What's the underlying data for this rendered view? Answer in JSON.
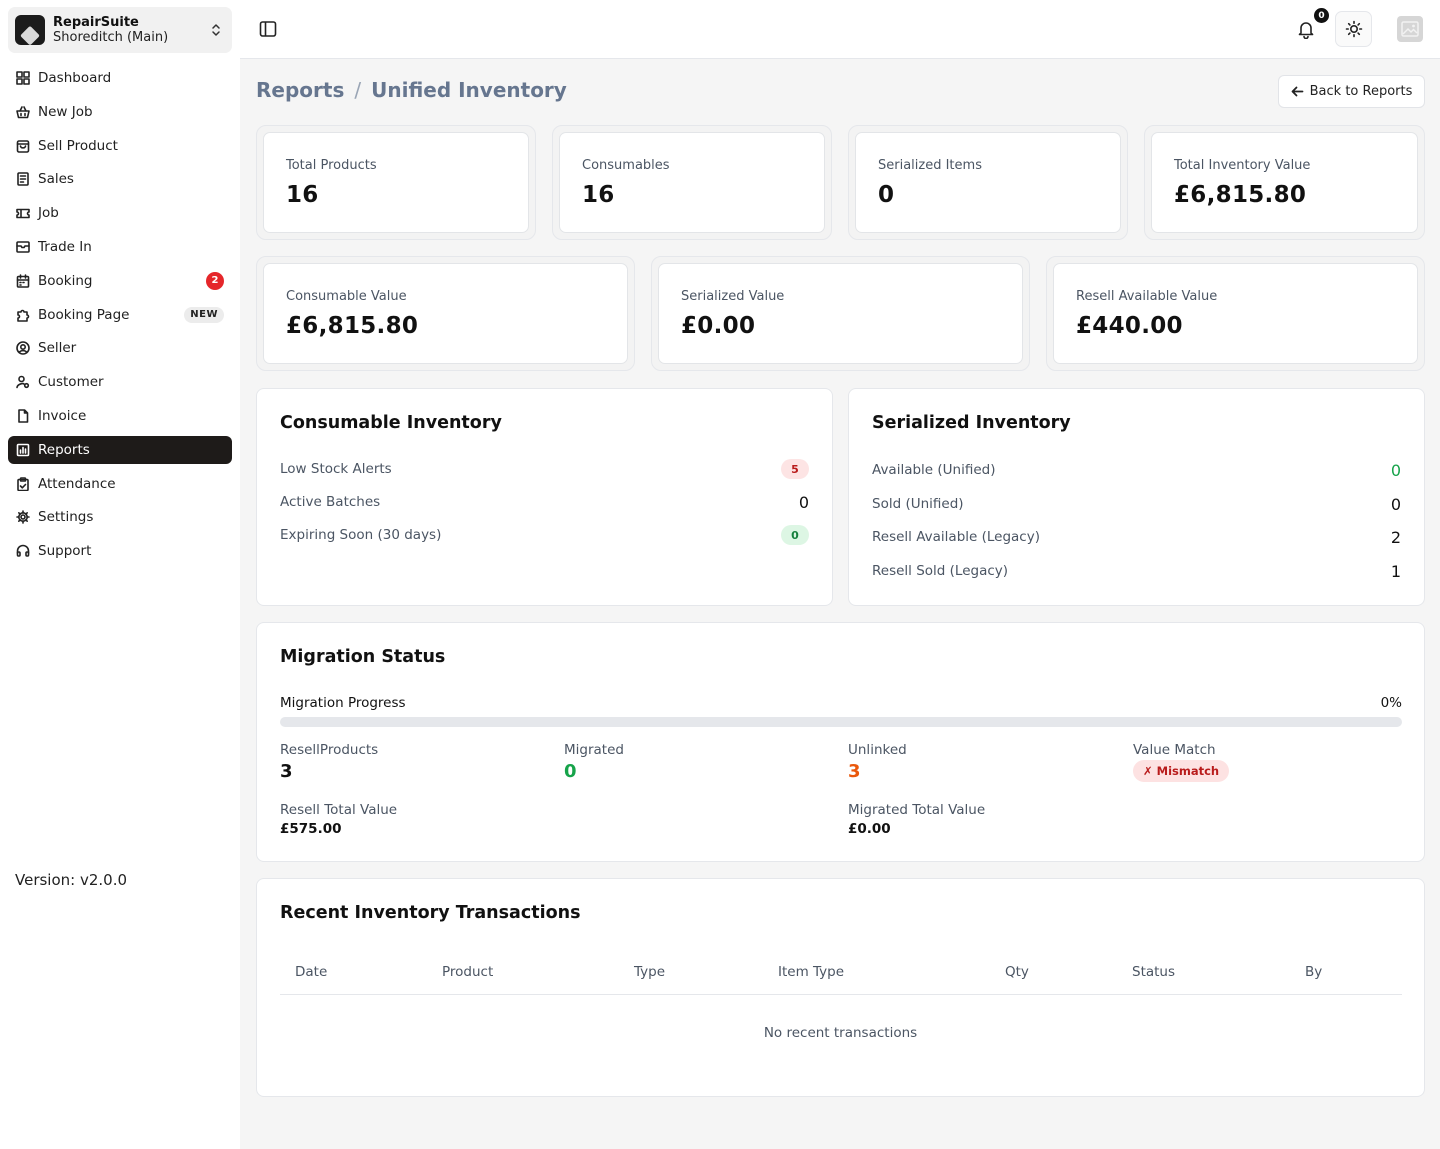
{
  "org": {
    "name": "RepairSuite",
    "branch": "Shoreditch (Main)"
  },
  "sidebar": {
    "items": [
      {
        "label": "Dashboard",
        "icon": "grid-icon"
      },
      {
        "label": "New Job",
        "icon": "basket-icon"
      },
      {
        "label": "Sell Product",
        "icon": "shopping-bag-icon"
      },
      {
        "label": "Sales",
        "icon": "receipt-icon"
      },
      {
        "label": "Job",
        "icon": "ticket-icon"
      },
      {
        "label": "Trade In",
        "icon": "archive-icon"
      },
      {
        "label": "Booking",
        "icon": "calendar-icon",
        "badge": "2"
      },
      {
        "label": "Booking Page",
        "icon": "puzzle-icon",
        "tag": "NEW"
      },
      {
        "label": "Seller",
        "icon": "user-circle-icon"
      },
      {
        "label": "Customer",
        "icon": "user-cog-icon"
      },
      {
        "label": "Invoice",
        "icon": "file-icon"
      },
      {
        "label": "Reports",
        "icon": "chart-icon",
        "active": true
      },
      {
        "label": "Attendance",
        "icon": "clipboard-icon"
      },
      {
        "label": "Settings",
        "icon": "gear-icon"
      },
      {
        "label": "Support",
        "icon": "headset-icon"
      }
    ],
    "version": "Version: v2.0.0"
  },
  "header": {
    "notification_count": "0"
  },
  "breadcrumb": {
    "parent": "Reports",
    "separator": "/",
    "current": "Unified Inventory"
  },
  "back_button": "Back to Reports",
  "stats_top": [
    {
      "label": "Total Products",
      "value": "16"
    },
    {
      "label": "Consumables",
      "value": "16"
    },
    {
      "label": "Serialized Items",
      "value": "0"
    },
    {
      "label": "Total Inventory Value",
      "value": "£6,815.80"
    }
  ],
  "stats_bottom": [
    {
      "label": "Consumable Value",
      "value": "£6,815.80"
    },
    {
      "label": "Serialized Value",
      "value": "£0.00"
    },
    {
      "label": "Resell Available Value",
      "value": "£440.00"
    }
  ],
  "consumable": {
    "title": "Consumable Inventory",
    "rows": [
      {
        "label": "Low Stock Alerts",
        "value": "5"
      },
      {
        "label": "Active Batches",
        "value": "0"
      },
      {
        "label": "Expiring Soon (30 days)",
        "value": "0"
      }
    ]
  },
  "serialized": {
    "title": "Serialized Inventory",
    "rows": [
      {
        "label": "Available (Unified)",
        "value": "0"
      },
      {
        "label": "Sold (Unified)",
        "value": "0"
      },
      {
        "label": "Resell Available (Legacy)",
        "value": "2"
      },
      {
        "label": "Resell Sold (Legacy)",
        "value": "1"
      }
    ]
  },
  "migration": {
    "title": "Migration Status",
    "progress_label": "Migration Progress",
    "progress_pct": "0%",
    "progress_value": 0,
    "resell_products_label": "ResellProducts",
    "resell_products": "3",
    "migrated_label": "Migrated",
    "migrated": "0",
    "unlinked_label": "Unlinked",
    "unlinked": "3",
    "value_match_label": "Value Match",
    "value_match": "✗ Mismatch",
    "resell_total_label": "Resell Total Value",
    "resell_total": "£575.00",
    "migrated_total_label": "Migrated Total Value",
    "migrated_total": "£0.00"
  },
  "transactions": {
    "title": "Recent Inventory Transactions",
    "columns": [
      "Date",
      "Product",
      "Type",
      "Item Type",
      "Qty",
      "Status",
      "By"
    ],
    "empty": "No recent transactions"
  },
  "colors": {
    "accent": "#1e1b19",
    "success": "#16a34a",
    "warning": "#ea580c",
    "danger": "#e5262a"
  }
}
